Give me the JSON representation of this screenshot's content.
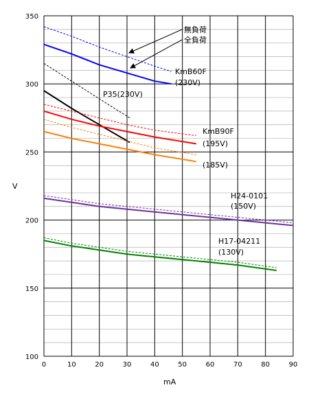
{
  "chart_data": {
    "type": "line",
    "xlabel": "mA",
    "ylabel": "V",
    "xlim": [
      0,
      90
    ],
    "ylim": [
      100,
      350
    ],
    "xticks": [
      0,
      10,
      20,
      30,
      40,
      50,
      60,
      70,
      80,
      90
    ],
    "yticks": [
      100,
      150,
      200,
      250,
      300,
      350
    ],
    "grid": true,
    "series": [
      {
        "tube": "KmB60F",
        "load": "full",
        "color": "#0000ff",
        "style": "solid",
        "x": [
          0,
          10,
          20,
          30,
          40,
          46
        ],
        "y": [
          329,
          322,
          314,
          308,
          302,
          300
        ]
      },
      {
        "tube": "KmB60F",
        "load": "none",
        "color": "#0000ff",
        "style": "dashed",
        "x": [
          0,
          10,
          20,
          30,
          40,
          46
        ],
        "y": [
          342,
          335,
          327,
          320,
          313,
          309
        ]
      },
      {
        "tube": "P35",
        "load": "full",
        "color": "#000000",
        "style": "solid",
        "x": [
          0,
          10,
          20,
          31
        ],
        "y": [
          295,
          282,
          270,
          257
        ]
      },
      {
        "tube": "P35",
        "load": "none",
        "color": "#000000",
        "style": "dashed",
        "x": [
          0,
          10,
          20,
          31
        ],
        "y": [
          315,
          302,
          289,
          275
        ]
      },
      {
        "tube": "KmB90F",
        "load": "full",
        "color": "#ff0000",
        "style": "solid",
        "x": [
          0,
          10,
          20,
          30,
          40,
          55
        ],
        "y": [
          280,
          274,
          269,
          265,
          261,
          256
        ]
      },
      {
        "tube": "KmB90F",
        "load": "none",
        "color": "#ff0000",
        "style": "dashed",
        "x": [
          0,
          10,
          20,
          30,
          40,
          55
        ],
        "y": [
          285,
          280,
          275,
          270,
          266,
          262
        ]
      },
      {
        "tube": "KmB90F (185V)",
        "load": "full",
        "color": "#ff8000",
        "style": "solid",
        "x": [
          0,
          10,
          20,
          30,
          40,
          55
        ],
        "y": [
          265,
          260,
          256,
          252,
          248,
          243
        ]
      },
      {
        "tube": "KmB90F (185V)",
        "load": "none",
        "color": "#ff8000",
        "style": "dashed",
        "x": [
          0,
          10,
          20,
          30,
          40,
          55
        ],
        "y": [
          274,
          268,
          263,
          258,
          253,
          248
        ]
      },
      {
        "tube": "H24-0101",
        "load": "full",
        "color": "#7030a0",
        "style": "solid",
        "x": [
          0,
          10,
          20,
          30,
          40,
          50,
          60,
          70,
          80,
          90
        ],
        "y": [
          216,
          213,
          210,
          208,
          206,
          204,
          202,
          200,
          198,
          196
        ]
      },
      {
        "tube": "H24-0101",
        "load": "none",
        "color": "#7030a0",
        "style": "dashed",
        "x": [
          0,
          10,
          20,
          30,
          40,
          50,
          60,
          70,
          80,
          90
        ],
        "y": [
          218,
          215,
          212,
          210,
          208,
          206,
          204,
          202,
          200,
          198
        ]
      },
      {
        "tube": "H17-04211",
        "load": "full",
        "color": "#008000",
        "style": "solid",
        "x": [
          0,
          10,
          20,
          30,
          40,
          50,
          60,
          70,
          84
        ],
        "y": [
          185,
          181,
          178,
          175,
          173,
          171,
          169,
          167,
          163
        ]
      },
      {
        "tube": "H17-04211",
        "load": "none",
        "color": "#008000",
        "style": "dashed",
        "x": [
          0,
          10,
          20,
          30,
          40,
          50,
          60,
          70,
          84
        ],
        "y": [
          187,
          183,
          180,
          177,
          175,
          173,
          171,
          169,
          165
        ]
      }
    ],
    "annotations": {
      "no_load": "無負荷",
      "full_load": "全負荷",
      "kmb60f_name": "KmB60F",
      "kmb60f_volt": "(230V)",
      "p35": "P35(230V)",
      "kmb90f_name": "KmB90F",
      "kmb90f_volt": "(195V)",
      "volt_185": "(185V)",
      "h24_name": "H24-0101",
      "h24_volt": "(150V)",
      "h17_name": "H17-04211",
      "h17_volt": "(130V)"
    }
  }
}
